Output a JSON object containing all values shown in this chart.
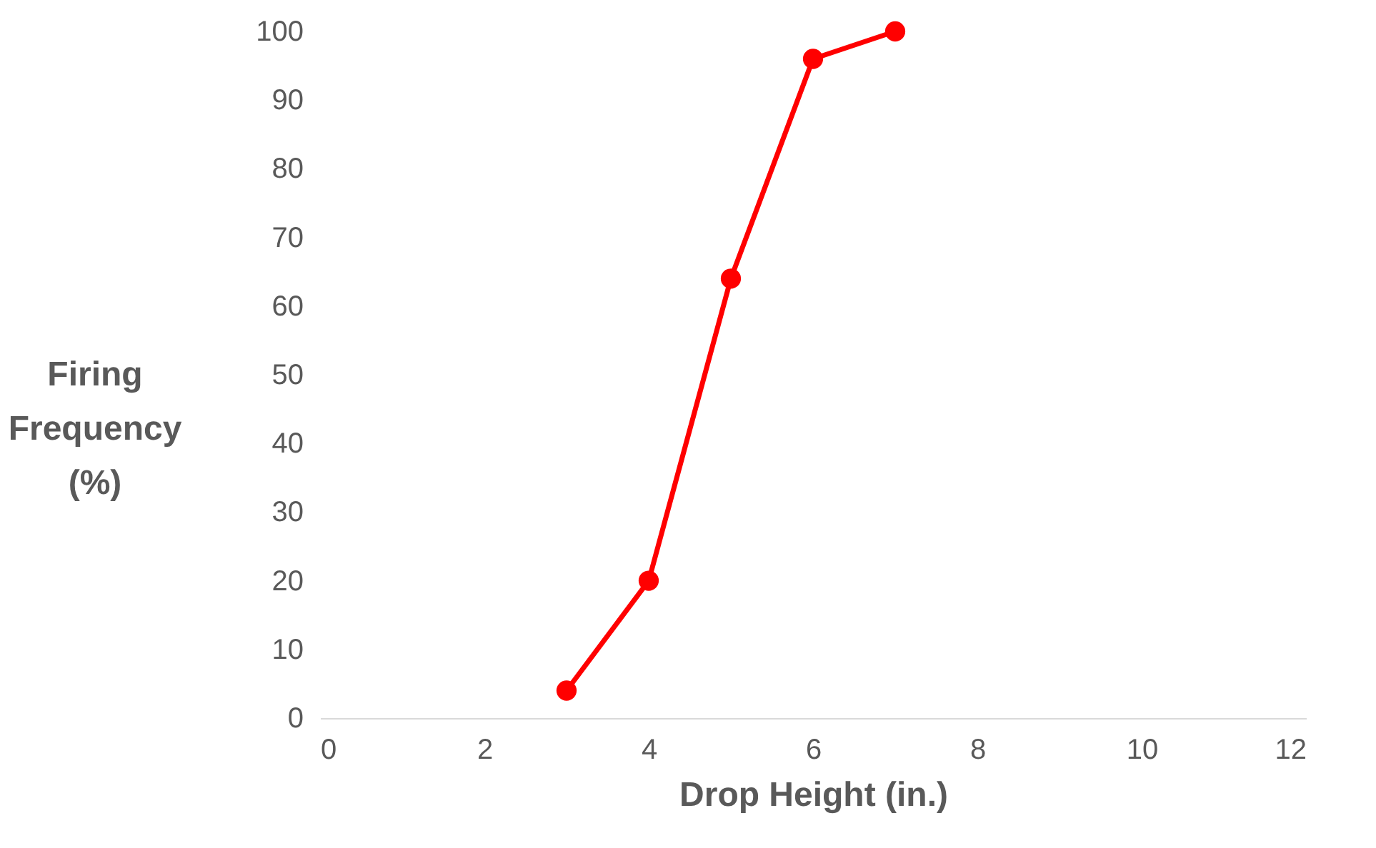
{
  "chart_data": {
    "type": "line",
    "xlabel": "Drop Height (in.)",
    "ylabel": "Firing Frequency (%)",
    "x": [
      3,
      4,
      5,
      6,
      7
    ],
    "series": [
      {
        "color": "#ff0000",
        "values": [
          4,
          20,
          64,
          96,
          100
        ]
      }
    ],
    "xlim": [
      0,
      12
    ],
    "xticks": [
      0,
      2,
      4,
      6,
      8,
      10,
      12
    ],
    "ylim": [
      0,
      100
    ],
    "yticks": [
      0,
      10,
      20,
      30,
      40,
      50,
      60,
      70,
      80,
      90,
      100
    ],
    "grid": false,
    "marker": "circle",
    "line_style": "solid"
  }
}
